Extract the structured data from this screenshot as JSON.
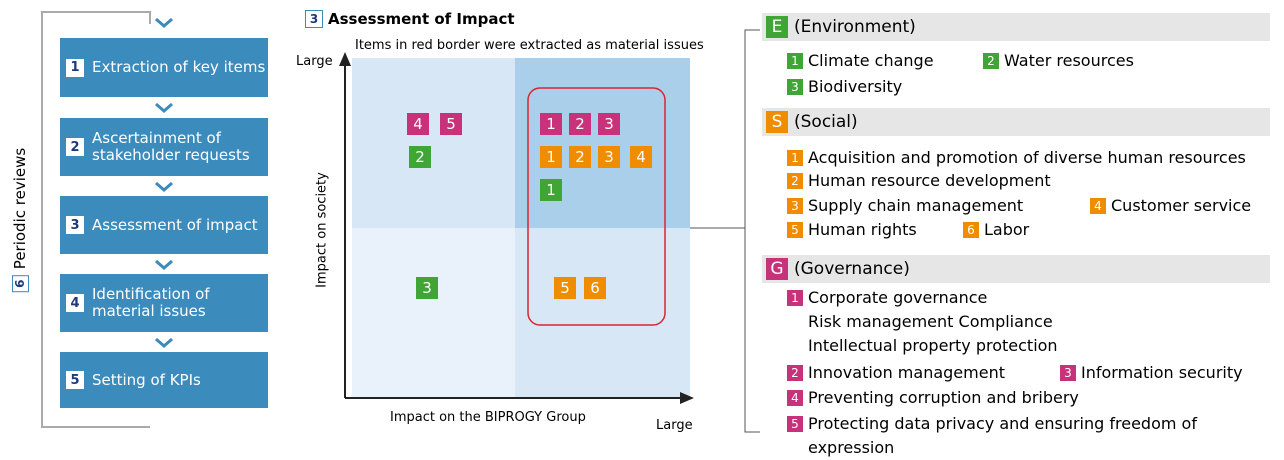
{
  "process": {
    "steps": [
      {
        "num": "1",
        "label": "Extraction of key items"
      },
      {
        "num": "2",
        "label": "Ascertainment of stakeholder requests"
      },
      {
        "num": "3",
        "label": "Assessment of impact"
      },
      {
        "num": "4",
        "label": "Identification of material issues"
      },
      {
        "num": "5",
        "label": "Setting of KPIs"
      }
    ],
    "review": {
      "num": "6",
      "label": "Periodic reviews"
    }
  },
  "matrix": {
    "num": "3",
    "title": "Assessment of Impact",
    "note": "Items in red border were extracted as material issues",
    "y_axis_label": "Impact on society",
    "y_axis_end": "Large",
    "x_axis_label": "Impact on the BIPROGY Group",
    "x_axis_end": "Large",
    "badges": [
      {
        "label": "4",
        "color": "#c8327a"
      },
      {
        "label": "5",
        "color": "#c8327a"
      },
      {
        "label": "2",
        "color": "#3fa535"
      },
      {
        "label": "1",
        "color": "#c8327a"
      },
      {
        "label": "2",
        "color": "#c8327a"
      },
      {
        "label": "3",
        "color": "#c8327a"
      },
      {
        "label": "1",
        "color": "#f08c00"
      },
      {
        "label": "2",
        "color": "#f08c00"
      },
      {
        "label": "3",
        "color": "#f08c00"
      },
      {
        "label": "4",
        "color": "#f08c00"
      },
      {
        "label": "1",
        "color": "#3fa535"
      },
      {
        "label": "3",
        "color": "#3fa535"
      },
      {
        "label": "5",
        "color": "#f08c00"
      },
      {
        "label": "6",
        "color": "#f08c00"
      }
    ]
  },
  "groups": [
    {
      "letter": "E",
      "name": "(Environment)",
      "color": "#3fa535",
      "items": [
        {
          "num": "1",
          "lines": [
            "Climate change"
          ]
        },
        {
          "num": "2",
          "lines": [
            "Water resources"
          ]
        },
        {
          "num": "3",
          "lines": [
            "Biodiversity"
          ]
        }
      ]
    },
    {
      "letter": "S",
      "name": "(Social)",
      "color": "#f08c00",
      "items": [
        {
          "num": "1",
          "lines": [
            "Acquisition and promotion of diverse human resources"
          ]
        },
        {
          "num": "2",
          "lines": [
            "Human resource development"
          ]
        },
        {
          "num": "3",
          "lines": [
            "Supply chain management"
          ]
        },
        {
          "num": "4",
          "lines": [
            "Customer service"
          ]
        },
        {
          "num": "5",
          "lines": [
            "Human rights"
          ]
        },
        {
          "num": "6",
          "lines": [
            "Labor"
          ]
        }
      ]
    },
    {
      "letter": "G",
      "name": "(Governance)",
      "color": "#c8327a",
      "items": [
        {
          "num": "1",
          "lines": [
            "Corporate governance",
            "Risk management   Compliance",
            "Intellectual property protection"
          ]
        },
        {
          "num": "2",
          "lines": [
            "Innovation management"
          ]
        },
        {
          "num": "3",
          "lines": [
            "Information security"
          ]
        },
        {
          "num": "4",
          "lines": [
            "Preventing corruption and bribery"
          ]
        },
        {
          "num": "5",
          "lines": [
            "Protecting data privacy and ensuring freedom of",
            "expression"
          ]
        }
      ]
    }
  ]
}
